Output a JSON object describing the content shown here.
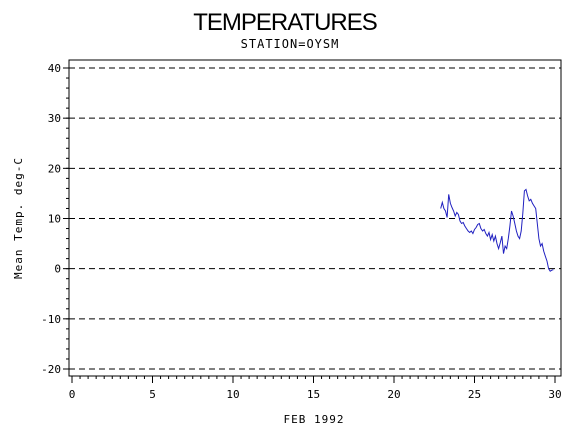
{
  "chart_data": {
    "type": "line",
    "title": "TEMPERATURES",
    "subtitle": "STATION=OYSM",
    "xlabel": "FEB 1992",
    "ylabel": "Mean Temp. deg-C",
    "xlim": [
      0,
      30
    ],
    "ylim": [
      -20,
      40
    ],
    "x_ticks": [
      0,
      5,
      10,
      15,
      20,
      25,
      30
    ],
    "y_ticks": [
      40,
      30,
      20,
      10,
      0,
      -10,
      -20
    ],
    "grid": "dashed horizontal at major y ticks",
    "line_color": "#2020c0",
    "series": [
      {
        "x": [
          22.9,
          23.0,
          23.1,
          23.2,
          23.3,
          23.4,
          23.5,
          23.6,
          23.7,
          23.8,
          23.9,
          24.0,
          24.1,
          24.2,
          24.3,
          24.4,
          24.5,
          24.6,
          24.7,
          24.8,
          24.9,
          25.0,
          25.1,
          25.2,
          25.3,
          25.4,
          25.5,
          25.6,
          25.7,
          25.8,
          25.9,
          26.0,
          26.1,
          26.2,
          26.3,
          26.4,
          26.5,
          26.6,
          26.7,
          26.8,
          26.9,
          27.0,
          27.1,
          27.2,
          27.3,
          27.4,
          27.5,
          27.6,
          27.7,
          27.8,
          27.9,
          28.0,
          28.1,
          28.2,
          28.3,
          28.4,
          28.5,
          28.6,
          28.7,
          28.8,
          28.9,
          29.0,
          29.1,
          29.2,
          29.3,
          29.4,
          29.5,
          29.6,
          29.7,
          29.8,
          29.9
        ],
        "y": [
          12,
          13.2,
          12.0,
          11.5,
          10.2,
          14.8,
          13.0,
          12.2,
          11.5,
          10.5,
          11.2,
          10.8,
          9.5,
          9.0,
          9.2,
          8.5,
          8.0,
          7.5,
          7.2,
          7.5,
          7.0,
          7.8,
          8.2,
          8.8,
          9.0,
          8.0,
          7.5,
          7.8,
          7.0,
          6.5,
          7.2,
          5.8,
          6.8,
          5.5,
          6.5,
          5.0,
          4.0,
          5.2,
          6.5,
          3.0,
          4.5,
          4.0,
          6.0,
          8.5,
          11.5,
          10.5,
          9.0,
          7.5,
          6.5,
          6.0,
          7.5,
          11.0,
          15.5,
          15.8,
          14.5,
          13.5,
          13.8,
          13.0,
          12.5,
          12.0,
          9.0,
          6.0,
          4.5,
          5.0,
          3.5,
          2.5,
          1.5,
          0.0,
          -0.5,
          -0.3,
          -0.2
        ]
      }
    ]
  }
}
